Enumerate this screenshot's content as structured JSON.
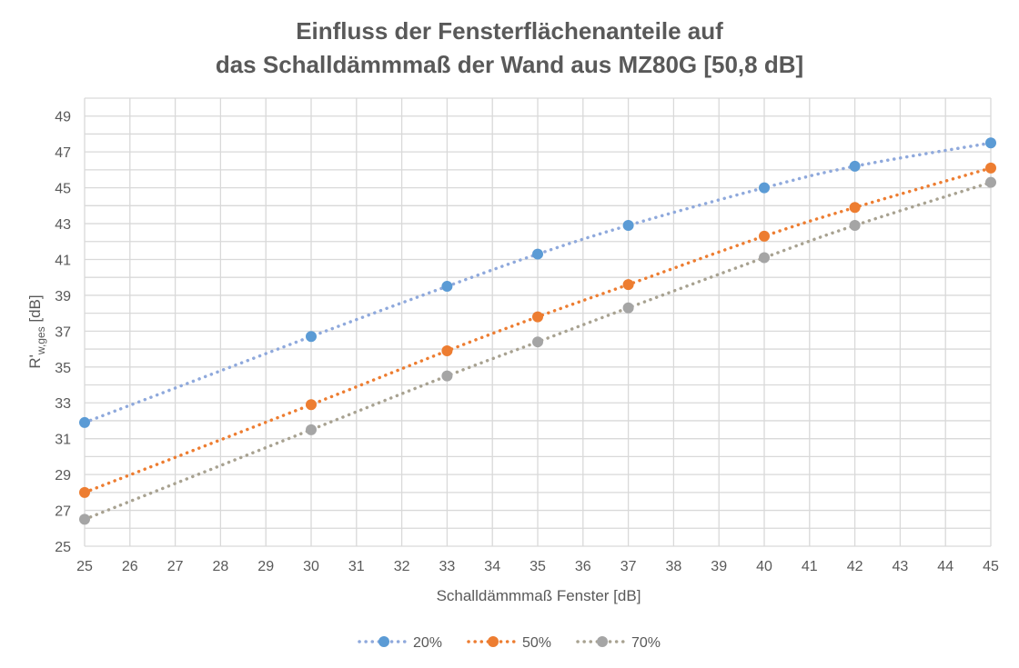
{
  "chart_data": {
    "type": "line",
    "title_line1": "Einfluss der Fensterflächenanteile auf",
    "title_line2": "das Schalldämmmaß der Wand aus MZ80G [50,8 dB]",
    "xlabel": "Schalldämmmaß Fenster [dB]",
    "ylabel_main": "R'",
    "ylabel_sub": "w,ges",
    "ylabel_unit": " [dB]",
    "xlim": [
      25,
      45
    ],
    "ylim": [
      25,
      50
    ],
    "x_ticks": [
      25,
      26,
      27,
      28,
      29,
      30,
      31,
      32,
      33,
      34,
      35,
      36,
      37,
      38,
      39,
      40,
      41,
      42,
      43,
      44,
      45
    ],
    "y_ticks": [
      25,
      27,
      29,
      31,
      33,
      35,
      37,
      39,
      41,
      43,
      45,
      47,
      49
    ],
    "grid": true,
    "legend_position": "bottom",
    "line_style": "dotted",
    "series": [
      {
        "name": "20%",
        "color": "#5b9bd5",
        "line_color": "#8fa9dc",
        "points": [
          [
            25,
            31.9
          ],
          [
            30,
            36.7
          ],
          [
            33,
            39.5
          ],
          [
            35,
            41.3
          ],
          [
            37,
            42.9
          ],
          [
            40,
            45.0
          ],
          [
            42,
            46.2
          ],
          [
            45,
            47.5
          ]
        ]
      },
      {
        "name": "50%",
        "color": "#ed7d31",
        "line_color": "#ed7d31",
        "points": [
          [
            25,
            28.0
          ],
          [
            30,
            32.9
          ],
          [
            33,
            35.9
          ],
          [
            35,
            37.8
          ],
          [
            37,
            39.6
          ],
          [
            40,
            42.3
          ],
          [
            42,
            43.9
          ],
          [
            45,
            46.1
          ]
        ]
      },
      {
        "name": "70%",
        "color": "#a5a5a5",
        "line_color": "#a8a291",
        "points": [
          [
            25,
            26.5
          ],
          [
            30,
            31.5
          ],
          [
            33,
            34.5
          ],
          [
            35,
            36.4
          ],
          [
            37,
            38.3
          ],
          [
            40,
            41.1
          ],
          [
            42,
            42.9
          ],
          [
            45,
            45.3
          ]
        ]
      }
    ]
  }
}
